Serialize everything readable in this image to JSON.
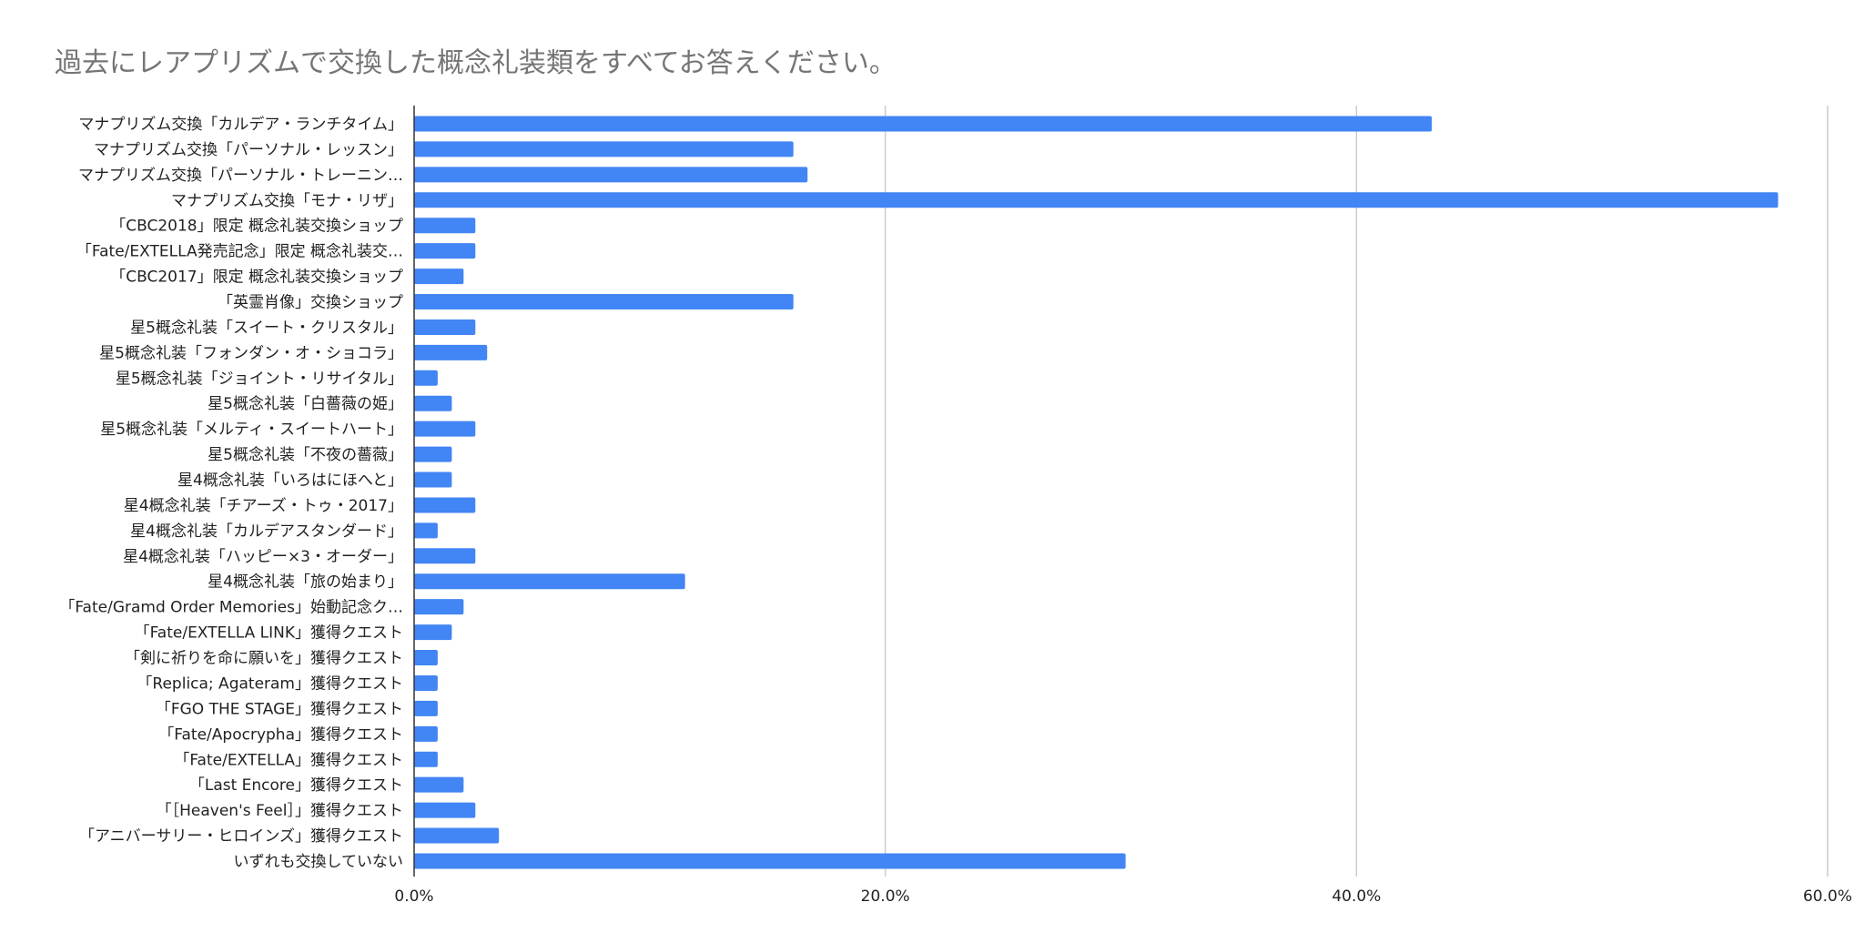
{
  "chart_data": {
    "type": "bar",
    "orientation": "horizontal",
    "title": "過去にレアプリズムで交換した概念礼装類をすべてお答えください。",
    "categories": [
      "マナプリズム交換「カルデア・ランチタイム」",
      "マナプリズム交換「パーソナル・レッスン」",
      "マナプリズム交換「パーソナル・トレーニン…",
      "マナプリズム交換「モナ・リザ」",
      "「CBC2018」限定 概念礼装交換ショップ",
      "「Fate/EXTELLA発売記念」限定 概念礼装交…",
      "「CBC2017」限定 概念礼装交換ショップ",
      "「英霊肖像」交換ショップ",
      "星5概念礼装「スイート・クリスタル」",
      "星5概念礼装「フォンダン・オ・ショコラ」",
      "星5概念礼装「ジョイント・リサイタル」",
      "星5概念礼装「白薔薇の姫」",
      "星5概念礼装「メルティ・スイートハート」",
      "星5概念礼装「不夜の薔薇」",
      "星4概念礼装「いろはにほへと」",
      "星4概念礼装「チアーズ・トゥ・2017」",
      "星4概念礼装「カルデアスタンダード」",
      "星4概念礼装「ハッピー×3・オーダー」",
      "星4概念礼装「旅の始まり」",
      "「Fate/Gramd Order Memories」始動記念ク…",
      "「Fate/EXTELLA LINK」獲得クエスト",
      "「剣に祈りを命に願いを」獲得クエスト",
      "「Replica; Agateram」獲得クエスト",
      "「FGO THE STAGE」獲得クエスト",
      "「Fate/Apocrypha」獲得クエスト",
      "「Fate/EXTELLA」獲得クエスト",
      "「Last Encore」獲得クエスト",
      "「［Heaven's Feel］」獲得クエスト",
      "「アニバーサリー・ヒロインズ」獲得クエスト",
      "いずれも交換していない"
    ],
    "values": [
      43.2,
      16.1,
      16.7,
      57.9,
      2.6,
      2.6,
      2.1,
      16.1,
      2.6,
      3.1,
      1.0,
      1.6,
      2.6,
      1.6,
      1.6,
      2.6,
      1.0,
      2.6,
      11.5,
      2.1,
      1.6,
      1.0,
      1.0,
      1.0,
      1.0,
      1.0,
      2.1,
      2.6,
      3.6,
      30.2
    ],
    "xlim": [
      0,
      60
    ],
    "xticks": [
      0,
      20,
      40,
      60
    ],
    "xtick_labels": [
      "0.0%",
      "20.0%",
      "40.0%",
      "60.0%"
    ],
    "grid": true,
    "legend": "none",
    "bar_color": "#4285f4",
    "grid_color": "#cccccc",
    "axis_color": "#333333"
  }
}
